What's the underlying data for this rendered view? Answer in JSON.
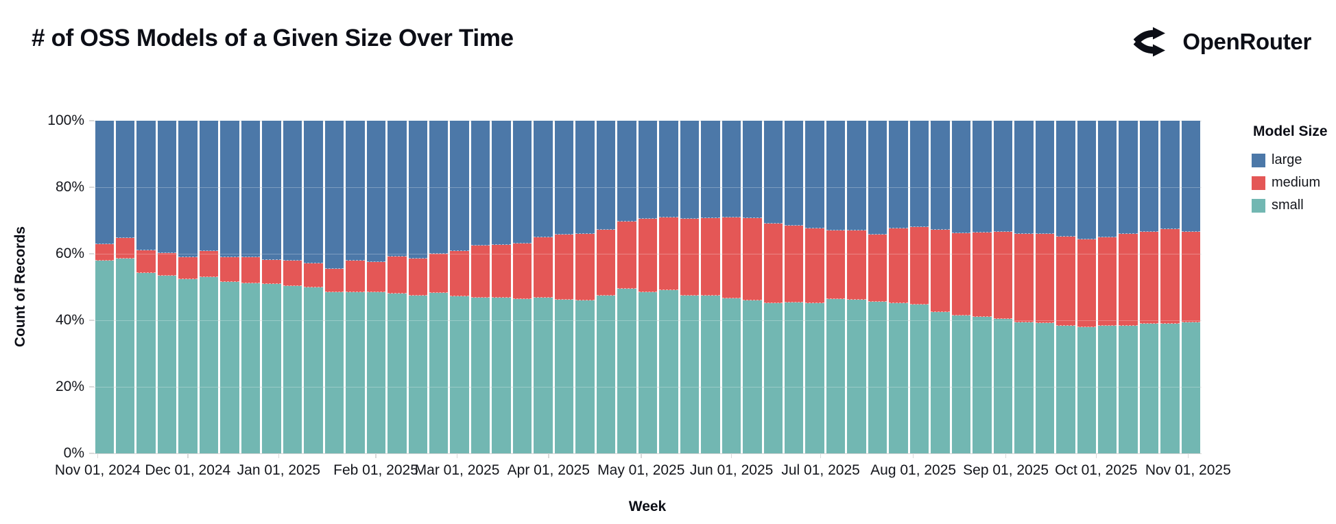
{
  "header": {
    "title": "# of OSS Models of a Given Size Over Time",
    "logo_text": "OpenRouter"
  },
  "chart_data": {
    "type": "bar",
    "stacked": "normalize",
    "title": "# of OSS Models of a Given Size Over Time",
    "xlabel": "Week",
    "ylabel": "Count of Records",
    "ylim": [
      0,
      100
    ],
    "grid": true,
    "legend_position": "right",
    "legend": {
      "title": "Model Size",
      "entries": [
        {
          "label": "large",
          "color": "#4c78a8"
        },
        {
          "label": "medium",
          "color": "#e45756"
        },
        {
          "label": "small",
          "color": "#72b7b2"
        }
      ]
    },
    "y_ticks": [
      {
        "label": "0%",
        "value": 0
      },
      {
        "label": "20%",
        "value": 20
      },
      {
        "label": "40%",
        "value": 40
      },
      {
        "label": "60%",
        "value": 60
      },
      {
        "label": "80%",
        "value": 80
      },
      {
        "label": "100%",
        "value": 100
      }
    ],
    "x_ticks": [
      {
        "label": "Nov 01, 2024",
        "pos_pct": 0.33
      },
      {
        "label": "Dec 01, 2024",
        "pos_pct": 8.47
      },
      {
        "label": "Jan 01, 2025",
        "pos_pct": 16.68
      },
      {
        "label": "Feb 01, 2025",
        "pos_pct": 25.45
      },
      {
        "label": "Mar 01, 2025",
        "pos_pct": 32.79
      },
      {
        "label": "Apr 01, 2025",
        "pos_pct": 41.04
      },
      {
        "label": "May 01, 2025",
        "pos_pct": 49.4
      },
      {
        "label": "Jun 01, 2025",
        "pos_pct": 57.56
      },
      {
        "label": "Jul 01, 2025",
        "pos_pct": 65.61
      },
      {
        "label": "Aug 01, 2025",
        "pos_pct": 73.97
      },
      {
        "label": "Sep 01, 2025",
        "pos_pct": 82.33
      },
      {
        "label": "Oct 01, 2025",
        "pos_pct": 90.48
      },
      {
        "label": "Nov 01, 2025",
        "pos_pct": 98.78
      }
    ],
    "categories": [
      "2024-10-27",
      "2024-11-03",
      "2024-11-10",
      "2024-11-17",
      "2024-11-24",
      "2024-12-01",
      "2024-12-08",
      "2024-12-15",
      "2024-12-22",
      "2024-12-29",
      "2025-01-05",
      "2025-01-12",
      "2025-01-19",
      "2025-01-26",
      "2025-02-02",
      "2025-02-09",
      "2025-02-16",
      "2025-02-23",
      "2025-03-02",
      "2025-03-09",
      "2025-03-16",
      "2025-03-23",
      "2025-03-30",
      "2025-04-06",
      "2025-04-13",
      "2025-04-20",
      "2025-04-27",
      "2025-05-04",
      "2025-05-11",
      "2025-05-18",
      "2025-05-25",
      "2025-06-01",
      "2025-06-08",
      "2025-06-15",
      "2025-06-22",
      "2025-06-29",
      "2025-07-06",
      "2025-07-13",
      "2025-07-20",
      "2025-07-27",
      "2025-08-03",
      "2025-08-10",
      "2025-08-17",
      "2025-08-24",
      "2025-08-31",
      "2025-09-07",
      "2025-09-14",
      "2025-09-21",
      "2025-09-28",
      "2025-10-05",
      "2025-10-12",
      "2025-10-19",
      "2025-10-26"
    ],
    "series": [
      {
        "name": "small",
        "color": "#72b7b2",
        "values": [
          58.0,
          58.6,
          54.2,
          53.3,
          52.4,
          52.9,
          51.5,
          51.1,
          50.9,
          50.4,
          49.8,
          48.4,
          48.4,
          48.4,
          48.1,
          47.4,
          48.2,
          47.2,
          46.9,
          46.7,
          46.4,
          46.9,
          46.2,
          46.0,
          47.4,
          49.5,
          48.5,
          49.1,
          47.5,
          47.4,
          46.5,
          45.9,
          45.2,
          45.4,
          45.2,
          46.3,
          46.2,
          45.5,
          45.2,
          44.8,
          42.4,
          41.5,
          41.1,
          40.4,
          39.4,
          39.1,
          38.4,
          38.0,
          38.4,
          38.4,
          38.9,
          38.9,
          39.3
        ]
      },
      {
        "name": "medium",
        "color": "#e45756",
        "values": [
          4.9,
          6.2,
          6.8,
          7.0,
          6.5,
          7.9,
          7.5,
          7.9,
          7.2,
          7.6,
          7.3,
          7.1,
          9.6,
          9.1,
          11.1,
          11.2,
          11.8,
          13.7,
          15.6,
          16.0,
          16.6,
          18.1,
          19.6,
          19.9,
          19.9,
          20.2,
          22.1,
          21.8,
          23.1,
          23.3,
          24.4,
          24.8,
          23.8,
          23.1,
          22.5,
          20.7,
          20.9,
          20.3,
          22.4,
          23.3,
          24.8,
          24.7,
          25.3,
          26.2,
          26.5,
          26.9,
          26.8,
          26.3,
          26.6,
          27.6,
          27.8,
          28.5,
          27.3
        ]
      },
      {
        "name": "large",
        "color": "#4c78a8",
        "values": [
          37.1,
          35.2,
          39.0,
          39.7,
          41.1,
          39.2,
          41.0,
          41.0,
          41.9,
          42.0,
          42.9,
          44.5,
          42.0,
          42.5,
          40.8,
          41.4,
          40.0,
          39.1,
          37.5,
          37.3,
          37.0,
          35.0,
          34.2,
          34.1,
          32.7,
          30.3,
          29.4,
          29.1,
          29.4,
          29.3,
          29.1,
          29.3,
          31.0,
          31.5,
          32.3,
          33.0,
          32.9,
          34.2,
          32.4,
          31.9,
          32.8,
          33.8,
          33.6,
          33.4,
          34.1,
          34.0,
          34.8,
          35.7,
          35.0,
          34.0,
          33.3,
          32.6,
          33.4
        ]
      }
    ]
  }
}
